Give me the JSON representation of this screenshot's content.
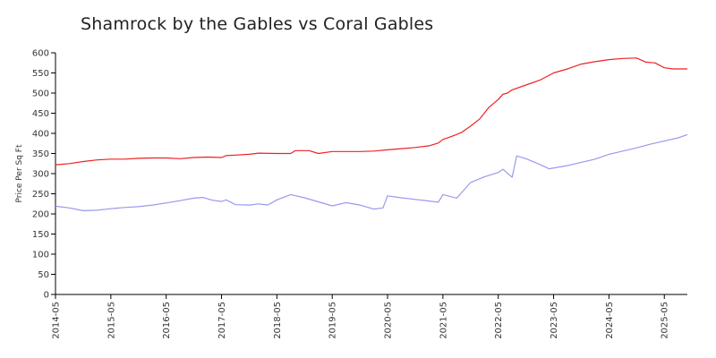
{
  "chart_data": {
    "type": "line",
    "title": "Shamrock by the Gables vs Coral Gables",
    "xlabel": "",
    "ylabel": "Price Per Sq Ft",
    "ylim": [
      0,
      600
    ],
    "y_ticks": [
      "0",
      "50",
      "100",
      "150",
      "200",
      "250",
      "300",
      "350",
      "400",
      "450",
      "500",
      "550",
      "600"
    ],
    "x_ticks": [
      "2014-05",
      "2015-05",
      "2016-05",
      "2017-05",
      "2018-05",
      "2019-05",
      "2020-05",
      "2021-05",
      "2022-05",
      "2023-05",
      "2024-05",
      "2025-05"
    ],
    "xlim": [
      "2014-05",
      "2025-10"
    ],
    "grid": false,
    "legend": "none",
    "series": [
      {
        "color": "#ee2222",
        "points": [
          [
            "2014-05",
            322
          ],
          [
            "2014-08",
            325
          ],
          [
            "2014-11",
            330
          ],
          [
            "2015-02",
            334
          ],
          [
            "2015-05",
            336
          ],
          [
            "2015-08",
            336
          ],
          [
            "2015-11",
            338
          ],
          [
            "2016-02",
            339
          ],
          [
            "2016-05",
            339
          ],
          [
            "2016-08",
            337
          ],
          [
            "2016-11",
            340
          ],
          [
            "2017-02",
            341
          ],
          [
            "2017-05",
            340
          ],
          [
            "2017-06",
            345
          ],
          [
            "2017-08",
            346
          ],
          [
            "2017-11",
            348
          ],
          [
            "2018-01",
            351
          ],
          [
            "2018-05",
            350
          ],
          [
            "2018-08",
            350
          ],
          [
            "2018-09",
            357
          ],
          [
            "2018-12",
            357
          ],
          [
            "2019-02",
            350
          ],
          [
            "2019-05",
            355
          ],
          [
            "2019-08",
            355
          ],
          [
            "2019-11",
            355
          ],
          [
            "2020-02",
            356
          ],
          [
            "2020-05",
            359
          ],
          [
            "2020-08",
            362
          ],
          [
            "2020-11",
            365
          ],
          [
            "2021-02",
            369
          ],
          [
            "2021-04",
            376
          ],
          [
            "2021-05",
            385
          ],
          [
            "2021-07",
            393
          ],
          [
            "2021-09",
            402
          ],
          [
            "2021-11",
            418
          ],
          [
            "2022-01",
            436
          ],
          [
            "2022-03",
            465
          ],
          [
            "2022-05",
            484
          ],
          [
            "2022-06",
            497
          ],
          [
            "2022-07",
            500
          ],
          [
            "2022-08",
            508
          ],
          [
            "2022-11",
            520
          ],
          [
            "2023-02",
            532
          ],
          [
            "2023-05",
            550
          ],
          [
            "2023-08",
            560
          ],
          [
            "2023-11",
            572
          ],
          [
            "2024-02",
            578
          ],
          [
            "2024-05",
            583
          ],
          [
            "2024-08",
            586
          ],
          [
            "2024-11",
            587
          ],
          [
            "2025-01",
            577
          ],
          [
            "2025-03",
            575
          ],
          [
            "2025-05",
            563
          ],
          [
            "2025-07",
            560
          ],
          [
            "2025-10",
            560
          ]
        ]
      },
      {
        "color": "#9999ee",
        "points": [
          [
            "2014-05",
            219
          ],
          [
            "2014-08",
            215
          ],
          [
            "2014-11",
            208
          ],
          [
            "2015-02",
            209
          ],
          [
            "2015-05",
            213
          ],
          [
            "2015-08",
            216
          ],
          [
            "2015-11",
            218
          ],
          [
            "2016-02",
            222
          ],
          [
            "2016-05",
            227
          ],
          [
            "2016-08",
            233
          ],
          [
            "2016-11",
            239
          ],
          [
            "2017-01",
            241
          ],
          [
            "2017-03",
            234
          ],
          [
            "2017-05",
            231
          ],
          [
            "2017-06",
            235
          ],
          [
            "2017-08",
            223
          ],
          [
            "2017-11",
            222
          ],
          [
            "2018-01",
            225
          ],
          [
            "2018-03",
            222
          ],
          [
            "2018-05",
            235
          ],
          [
            "2018-08",
            248
          ],
          [
            "2018-11",
            240
          ],
          [
            "2019-02",
            230
          ],
          [
            "2019-05",
            220
          ],
          [
            "2019-08",
            228
          ],
          [
            "2019-11",
            222
          ],
          [
            "2020-02",
            212
          ],
          [
            "2020-04",
            215
          ],
          [
            "2020-05",
            245
          ],
          [
            "2020-08",
            240
          ],
          [
            "2020-11",
            236
          ],
          [
            "2021-02",
            232
          ],
          [
            "2021-04",
            229
          ],
          [
            "2021-05",
            248
          ],
          [
            "2021-08",
            239
          ],
          [
            "2021-11",
            278
          ],
          [
            "2022-02",
            292
          ],
          [
            "2022-05",
            303
          ],
          [
            "2022-06",
            311
          ],
          [
            "2022-08",
            291
          ],
          [
            "2022-09",
            344
          ],
          [
            "2022-11",
            337
          ],
          [
            "2023-02",
            323
          ],
          [
            "2023-04",
            312
          ],
          [
            "2023-08",
            320
          ],
          [
            "2023-11",
            328
          ],
          [
            "2024-02",
            336
          ],
          [
            "2024-05",
            348
          ],
          [
            "2024-08",
            356
          ],
          [
            "2024-11",
            364
          ],
          [
            "2025-02",
            373
          ],
          [
            "2025-05",
            381
          ],
          [
            "2025-08",
            389
          ],
          [
            "2025-10",
            397
          ]
        ]
      }
    ]
  }
}
